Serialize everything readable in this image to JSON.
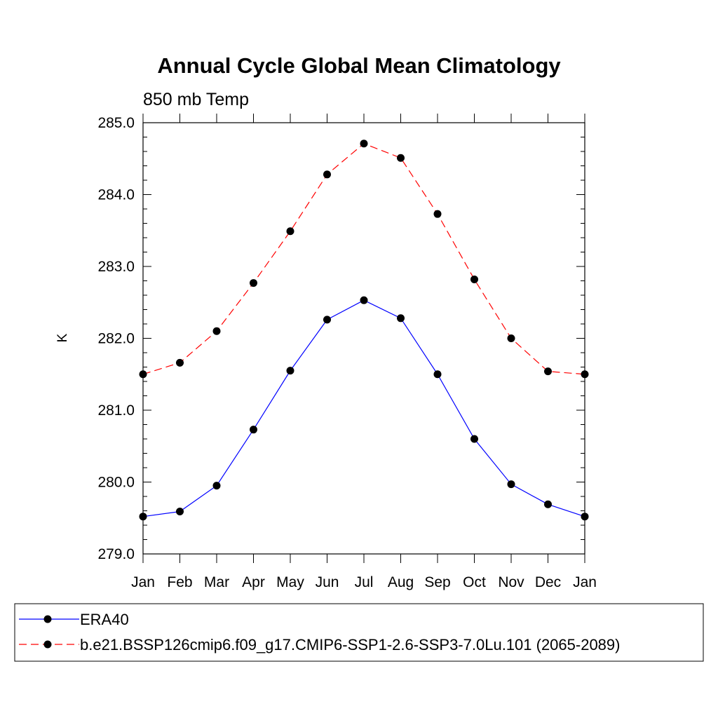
{
  "chart_data": {
    "type": "line",
    "title": "Annual Cycle Global Mean Climatology",
    "subtitle": "850 mb Temp",
    "ylabel": "K",
    "xlabel": "",
    "categories": [
      "Jan",
      "Feb",
      "Mar",
      "Apr",
      "May",
      "Jun",
      "Jul",
      "Aug",
      "Sep",
      "Oct",
      "Nov",
      "Dec",
      "Jan"
    ],
    "ylim": [
      279.0,
      285.0
    ],
    "yticks": [
      "279.0",
      "280.0",
      "281.0",
      "282.0",
      "283.0",
      "284.0",
      "285.0"
    ],
    "grid": false,
    "legend_position": "bottom",
    "series": [
      {
        "name": "ERA40",
        "color": "#0000ff",
        "line_style": "solid",
        "marker": "filled-circle",
        "values": [
          279.52,
          279.59,
          279.95,
          280.73,
          281.55,
          282.26,
          282.53,
          282.28,
          281.5,
          280.6,
          279.97,
          279.69,
          279.52
        ]
      },
      {
        "name": "b.e21.BSSP126cmip6.f09_g17.CMIP6-SSP1-2.6-SSP3-7.0Lu.101 (2065-2089)",
        "color": "#ff0000",
        "line_style": "dashed",
        "marker": "filled-circle",
        "values": [
          281.5,
          281.66,
          282.1,
          282.77,
          283.49,
          284.28,
          284.71,
          284.51,
          283.73,
          282.82,
          282.0,
          281.54,
          281.5
        ]
      }
    ]
  }
}
